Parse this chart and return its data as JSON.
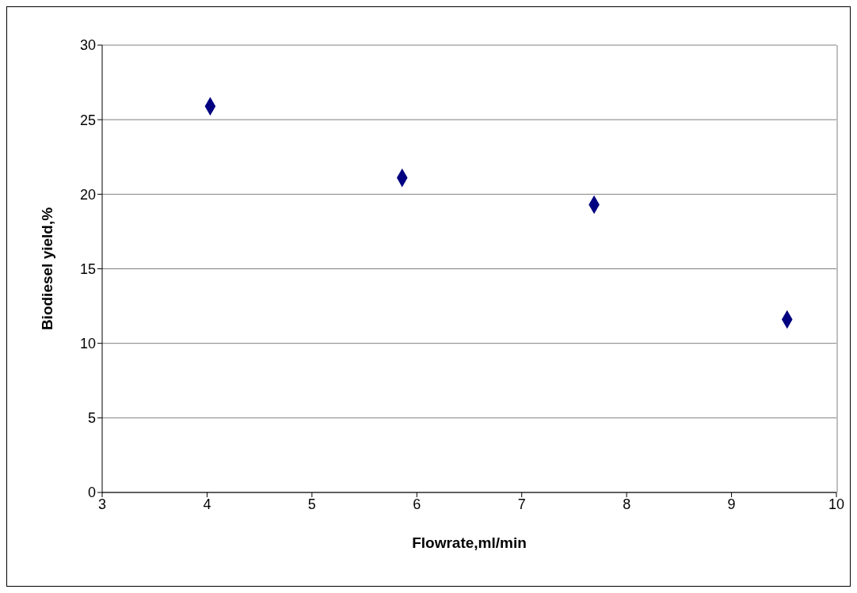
{
  "chart_data": {
    "type": "scatter",
    "xlabel": "Flowrate,ml/min",
    "ylabel": "Biodiesel yield,%",
    "series": [
      {
        "color": "#000080",
        "x": [
          4.03,
          5.86,
          7.69,
          9.53
        ],
        "values": [
          25.9,
          21.1,
          19.3,
          11.6
        ]
      }
    ],
    "xlim": [
      3,
      10
    ],
    "xticks": [
      3,
      4,
      5,
      6,
      7,
      8,
      9,
      10
    ],
    "ylim": [
      0,
      30
    ],
    "yticks": [
      0,
      5,
      10,
      15,
      20,
      25,
      30
    ],
    "grid": "y",
    "marker": "diamond",
    "legend": false
  }
}
